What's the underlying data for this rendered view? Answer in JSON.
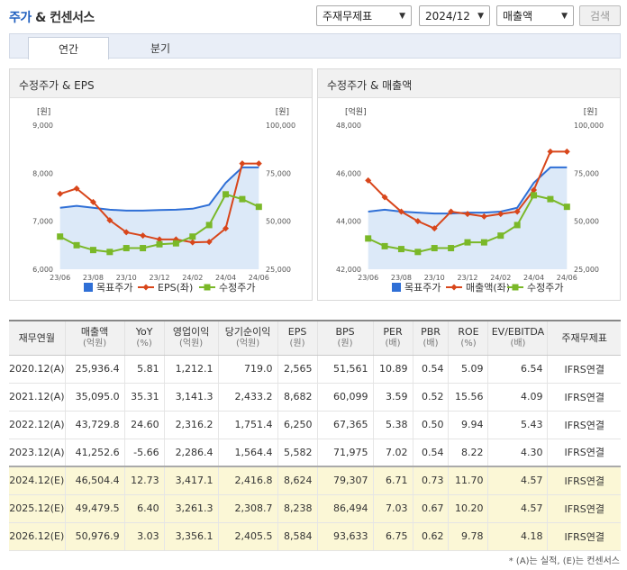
{
  "header": {
    "title_main": "주가",
    "title_rest": "& 컨센서스",
    "select_gaap": "주재무제표",
    "select_period": "2024/12",
    "select_metric": "매출액",
    "search_label": "검색"
  },
  "tabs": [
    {
      "label": "연간",
      "active": true
    },
    {
      "label": "분기",
      "active": false
    }
  ],
  "charts": {
    "left": {
      "title": "수정주가 & EPS",
      "yleft_unit": "[원]",
      "yright_unit": "[원]",
      "yleft_ticks": [
        "9,000",
        "8,000",
        "7,000",
        "6,000"
      ],
      "yright_ticks": [
        "100,000",
        "75,000",
        "50,000",
        "25,000"
      ],
      "xticks": [
        "23/06",
        "23/08",
        "23/10",
        "23/12",
        "24/02",
        "24/04",
        "24/06"
      ],
      "legend": [
        "목표주가",
        "EPS(좌)",
        "수정주가"
      ]
    },
    "right": {
      "title": "수정주가 & 매출액",
      "yleft_unit": "[억원]",
      "yright_unit": "[원]",
      "yleft_ticks": [
        "48,000",
        "46,000",
        "44,000",
        "42,000"
      ],
      "yright_ticks": [
        "100,000",
        "75,000",
        "50,000",
        "25,000"
      ],
      "xticks": [
        "23/06",
        "23/08",
        "23/10",
        "23/12",
        "24/02",
        "24/04",
        "24/06"
      ],
      "legend": [
        "목표주가",
        "매출액(좌)",
        "수정주가"
      ]
    }
  },
  "chart_data": [
    {
      "type": "line",
      "title": "수정주가 & EPS",
      "x": [
        "23/06",
        "23/07",
        "23/08",
        "23/09",
        "23/10",
        "23/11",
        "23/12",
        "24/01",
        "24/02",
        "24/03",
        "24/04",
        "24/05",
        "24/06"
      ],
      "series": [
        {
          "name": "목표주가",
          "axis": "right",
          "color": "#2f6fd6",
          "values": [
            57000,
            58000,
            57000,
            56000,
            55500,
            55500,
            55800,
            56000,
            56500,
            58500,
            70000,
            78000,
            78000
          ]
        },
        {
          "name": "EPS(좌)",
          "axis": "left",
          "color": "#d8461b",
          "values": [
            7570,
            7680,
            7400,
            7020,
            6770,
            6700,
            6620,
            6620,
            6560,
            6570,
            6850,
            8200,
            8200
          ]
        },
        {
          "name": "수정주가",
          "axis": "right",
          "color": "#7ab828",
          "values": [
            42000,
            37500,
            35000,
            34000,
            36000,
            36000,
            38000,
            38500,
            42000,
            48000,
            64000,
            61500,
            57500
          ]
        }
      ],
      "yleft": [
        6000,
        9000
      ],
      "yright": [
        25000,
        100000
      ]
    },
    {
      "type": "line",
      "title": "수정주가 & 매출액",
      "x": [
        "23/06",
        "23/07",
        "23/08",
        "23/09",
        "23/10",
        "23/11",
        "23/12",
        "24/01",
        "24/02",
        "24/03",
        "24/04",
        "24/05",
        "24/06"
      ],
      "series": [
        {
          "name": "목표주가",
          "axis": "right",
          "color": "#2f6fd6",
          "values": [
            55000,
            56000,
            55000,
            54500,
            54000,
            54000,
            54500,
            54500,
            55000,
            57000,
            70000,
            78000,
            78000
          ]
        },
        {
          "name": "매출액(좌)",
          "axis": "left",
          "color": "#d8461b",
          "values": [
            45700,
            45000,
            44400,
            44000,
            43700,
            44400,
            44300,
            44200,
            44300,
            44400,
            45300,
            46900,
            46900
          ]
        },
        {
          "name": "수정주가",
          "axis": "right",
          "color": "#7ab828",
          "values": [
            41000,
            37000,
            35500,
            34000,
            36000,
            36000,
            39000,
            39000,
            42500,
            48000,
            63500,
            61500,
            57500
          ]
        }
      ],
      "yleft": [
        42000,
        48000
      ],
      "yright": [
        25000,
        100000
      ]
    }
  ],
  "table": {
    "headers": [
      {
        "label": "재무연월",
        "sub": ""
      },
      {
        "label": "매출액",
        "sub": "(억원)"
      },
      {
        "label": "YoY",
        "sub": "(%)"
      },
      {
        "label": "영업이익",
        "sub": "(억원)"
      },
      {
        "label": "당기순이익",
        "sub": "(억원)"
      },
      {
        "label": "EPS",
        "sub": "(원)"
      },
      {
        "label": "BPS",
        "sub": "(원)"
      },
      {
        "label": "PER",
        "sub": "(배)"
      },
      {
        "label": "PBR",
        "sub": "(배)"
      },
      {
        "label": "ROE",
        "sub": "(%)"
      },
      {
        "label": "EV/EBITDA",
        "sub": "(배)"
      },
      {
        "label": "주재무제표",
        "sub": ""
      }
    ],
    "rows": [
      {
        "est": false,
        "cells": [
          "2020.12(A)",
          "25,936.4",
          "5.81",
          "1,212.1",
          "719.0",
          "2,565",
          "51,561",
          "10.89",
          "0.54",
          "5.09",
          "6.54",
          "IFRS연결"
        ]
      },
      {
        "est": false,
        "cells": [
          "2021.12(A)",
          "35,095.0",
          "35.31",
          "3,141.3",
          "2,433.2",
          "8,682",
          "60,099",
          "3.59",
          "0.52",
          "15.56",
          "4.09",
          "IFRS연결"
        ]
      },
      {
        "est": false,
        "cells": [
          "2022.12(A)",
          "43,729.8",
          "24.60",
          "2,316.2",
          "1,751.4",
          "6,250",
          "67,365",
          "5.38",
          "0.50",
          "9.94",
          "5.43",
          "IFRS연결"
        ]
      },
      {
        "est": false,
        "cells": [
          "2023.12(A)",
          "41,252.6",
          "-5.66",
          "2,286.4",
          "1,564.4",
          "5,582",
          "71,975",
          "7.02",
          "0.54",
          "8.22",
          "4.30",
          "IFRS연결"
        ]
      },
      {
        "est": true,
        "cells": [
          "2024.12(E)",
          "46,504.4",
          "12.73",
          "3,417.1",
          "2,416.8",
          "8,624",
          "79,307",
          "6.71",
          "0.73",
          "11.70",
          "4.57",
          "IFRS연결"
        ]
      },
      {
        "est": true,
        "cells": [
          "2025.12(E)",
          "49,479.5",
          "6.40",
          "3,261.3",
          "2,308.7",
          "8,238",
          "86,494",
          "7.03",
          "0.67",
          "10.20",
          "4.57",
          "IFRS연결"
        ]
      },
      {
        "est": true,
        "cells": [
          "2026.12(E)",
          "50,976.9",
          "3.03",
          "3,356.1",
          "2,405.5",
          "8,584",
          "93,633",
          "6.75",
          "0.62",
          "9.78",
          "4.18",
          "IFRS연결"
        ]
      }
    ]
  },
  "footnote": "* (A)는 실적, (E)는 컨센서스"
}
